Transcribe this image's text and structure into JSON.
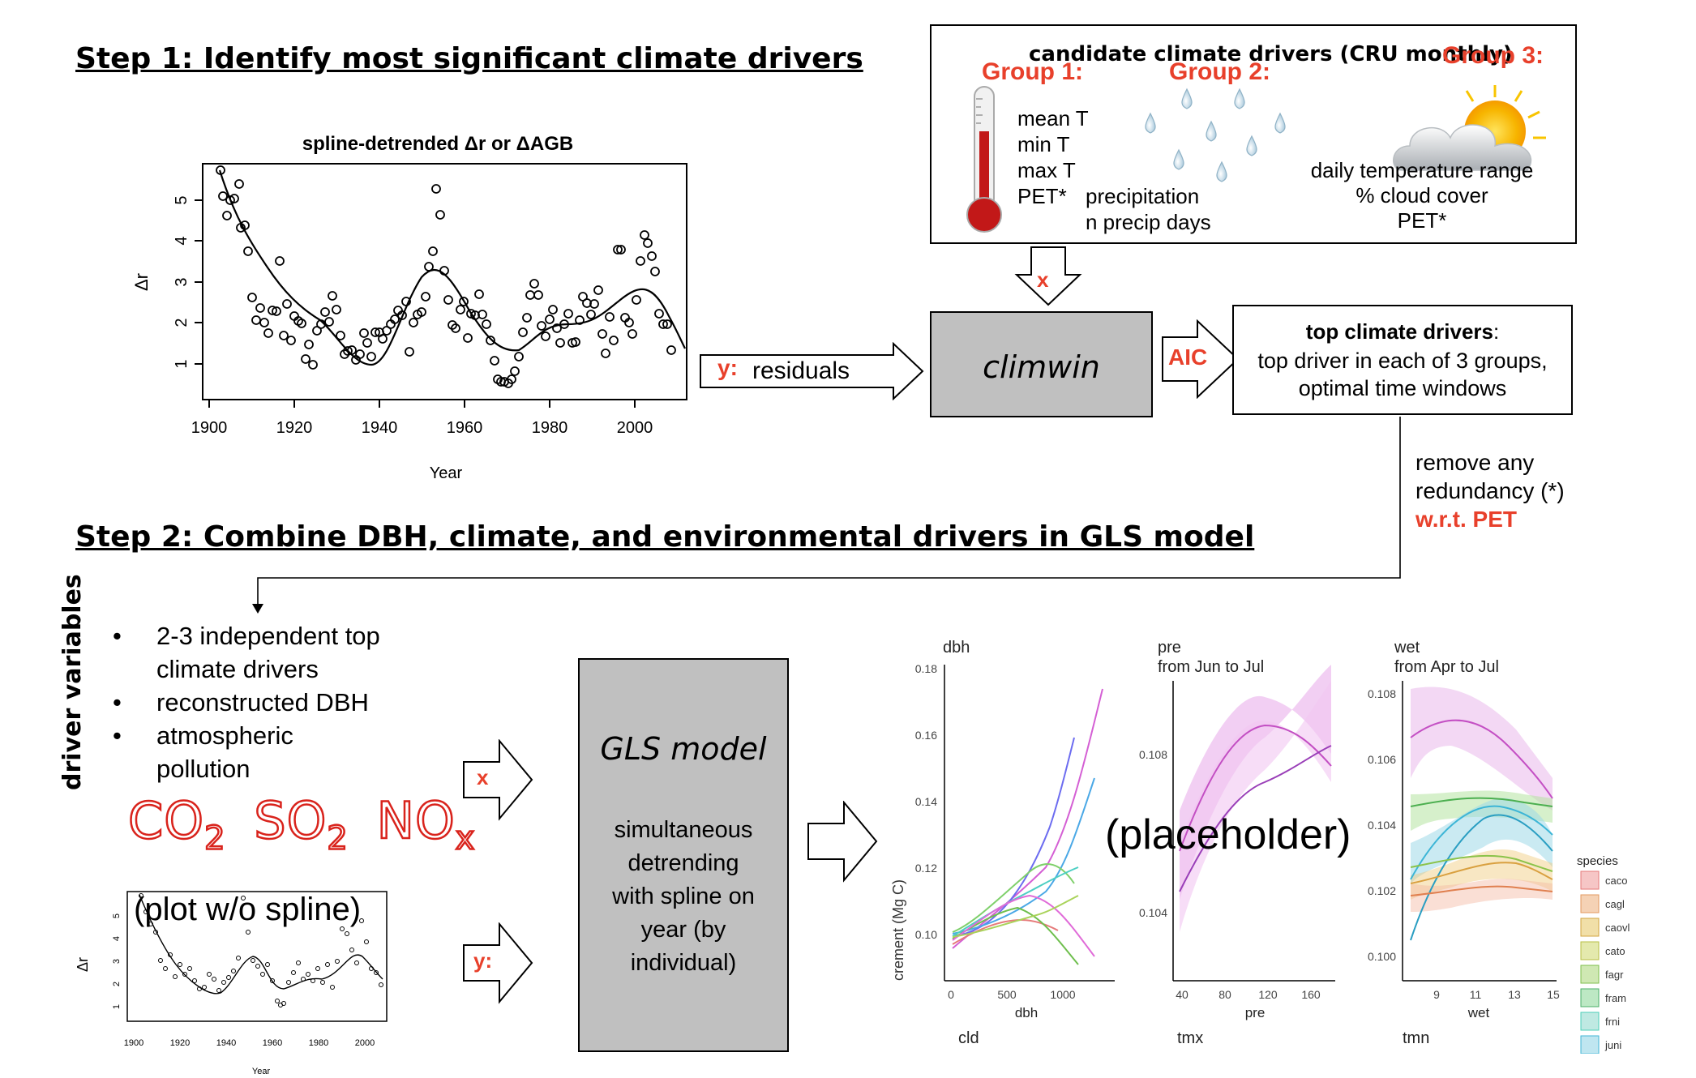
{
  "step1": {
    "title": "Step 1: Identify most significant climate drivers"
  },
  "step2": {
    "title": "Step 2: Combine DBH, climate, and environmental drivers in GLS model"
  },
  "top_plot": {
    "title": "spline-detrended Δr or ΔAGB",
    "ylabel": "Δr",
    "xlabel": "Year",
    "xticks": [
      "1900",
      "1920",
      "1940",
      "1960",
      "1980",
      "2000"
    ],
    "yticks": [
      "1",
      "2",
      "3",
      "4",
      "5"
    ]
  },
  "candidates": {
    "title": "candidate climate drivers (CRU monthly)",
    "group1": {
      "label": "Group 1:",
      "items": [
        "mean T",
        "min T",
        "max T",
        "PET*"
      ]
    },
    "group2": {
      "label": "Group 2:",
      "items": [
        "precipitation",
        "n precip days"
      ]
    },
    "group3": {
      "label": "Group 3:",
      "items": [
        "daily temperature range",
        "% cloud cover",
        "PET*"
      ]
    }
  },
  "arrows": {
    "x": "x",
    "y_residuals_prefix": "y:",
    "y_residuals_text": "residuals",
    "aic": "AIC",
    "x2": "x",
    "y2": "y:"
  },
  "climwin": {
    "label": "climwin"
  },
  "top_drivers": {
    "bold": "top climate drivers",
    "colon": ":",
    "line2": "top driver in each of 3 groups,",
    "line3": "optimal time windows"
  },
  "redundancy": {
    "line1": "remove any",
    "line2": "redundancy (*)",
    "line3": "w.r.t. PET"
  },
  "driver_vars": {
    "side_label": "driver variables",
    "items": [
      "2-3 independent top climate drivers",
      "reconstructed DBH",
      "atmospheric pollution"
    ],
    "bullet": "•",
    "pollutants": [
      {
        "base": "CO",
        "sub": "2"
      },
      {
        "base": "SO",
        "sub": "2"
      },
      {
        "base": "NO",
        "sub": "x"
      }
    ]
  },
  "small_plot": {
    "overlay": "(plot w/o spline)",
    "ylabel": "Δr",
    "xlabel": "Year",
    "xticks": [
      "1900",
      "1920",
      "1940",
      "1960",
      "1980",
      "2000"
    ],
    "yticks": [
      "1",
      "2",
      "3",
      "4",
      "5"
    ]
  },
  "gls": {
    "title": "GLS model",
    "body_lines": [
      "simultaneous",
      "detrending",
      "with spline on",
      "year (by",
      "individual)"
    ]
  },
  "panels": {
    "placeholder": "(placeholder)",
    "ylabel": "crement (Mg C)",
    "p1": {
      "title": "dbh",
      "xlabel": "dbh",
      "bottom": "cld",
      "xticks": [
        "0",
        "500",
        "1000"
      ],
      "yticks": [
        "0.10",
        "0.12",
        "0.14",
        "0.16",
        "0.18"
      ]
    },
    "p2": {
      "title": "pre",
      "subtitle": "from Jun to Jul",
      "xlabel": "pre",
      "bottom": "tmx",
      "xticks": [
        "40",
        "80",
        "120",
        "160"
      ],
      "yticks": [
        "0.104",
        "0.108"
      ]
    },
    "p3": {
      "title": "wet",
      "subtitle": "from Apr to Jul",
      "xlabel": "wet",
      "bottom": "tmn",
      "xticks": [
        "9",
        "11",
        "13",
        "15"
      ],
      "yticks": [
        "0.100",
        "0.102",
        "0.104",
        "0.106",
        "0.108"
      ]
    },
    "legend": {
      "title": "species",
      "items": [
        "caco",
        "cagl",
        "caovl",
        "cato",
        "fagr",
        "fram",
        "frni",
        "juni"
      ]
    }
  },
  "colors": {
    "red": "#e8402b",
    "gray_box": "#c0c0c0"
  }
}
